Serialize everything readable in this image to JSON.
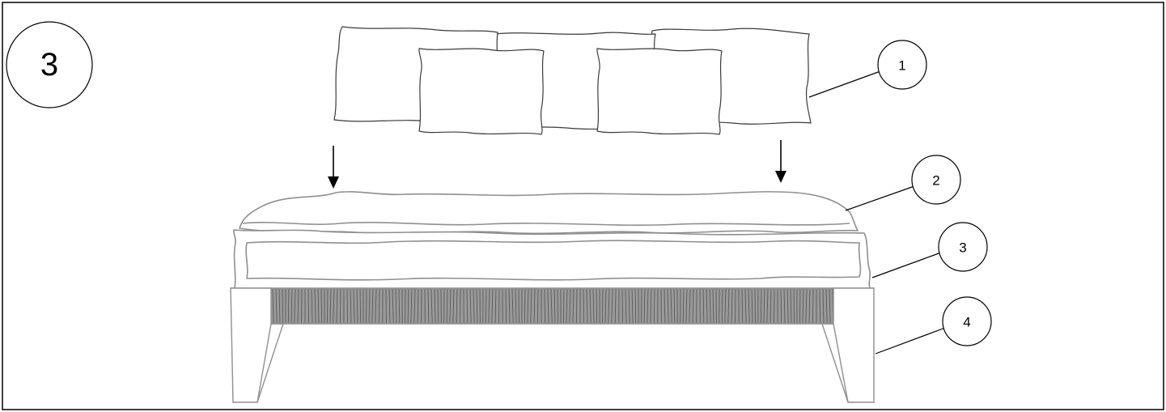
{
  "step": {
    "number": "3"
  },
  "callouts": [
    {
      "label": "1",
      "part": "pillows"
    },
    {
      "label": "2",
      "part": "top-cushion"
    },
    {
      "label": "3",
      "part": "mattress"
    },
    {
      "label": "4",
      "part": "base-frame"
    }
  ],
  "colors": {
    "outline": "#000000",
    "cushion_outline": "#8f8f8f",
    "weave": "#9a9a9a"
  }
}
